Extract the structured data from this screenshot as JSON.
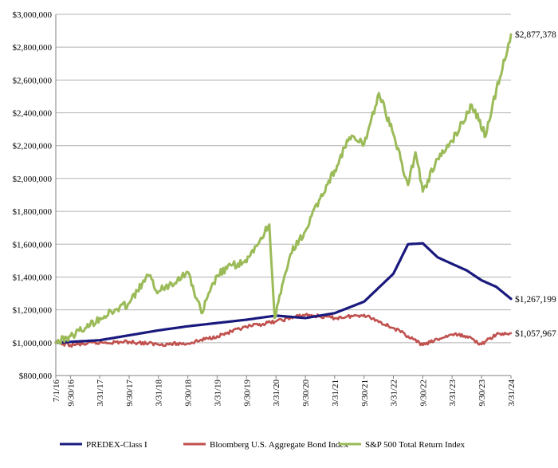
{
  "chart_data": {
    "type": "line",
    "title": "",
    "xlabel": "",
    "ylabel": "",
    "ylim": [
      800000,
      3000000
    ],
    "y_ticks": [
      800000,
      1000000,
      1200000,
      1400000,
      1600000,
      1800000,
      2000000,
      2200000,
      2400000,
      2600000,
      2800000,
      3000000
    ],
    "y_tick_labels": [
      "$800,000",
      "$1,000,000",
      "$1,200,000",
      "$1,400,000",
      "$1,600,000",
      "$1,800,000",
      "$2,000,000",
      "$2,200,000",
      "$2,400,000",
      "$2,600,000",
      "$2,800,000",
      "$3,000,000"
    ],
    "x_tick_labels": [
      "7/1/16",
      "9/30/16",
      "3/31/17",
      "9/30/17",
      "3/31/18",
      "9/30/18",
      "3/31/19",
      "9/30/19",
      "3/31/20",
      "9/30/20",
      "3/31/21",
      "9/30/21",
      "3/31/22",
      "9/30/22",
      "3/31/23",
      "9/30/23",
      "3/31/24"
    ],
    "grid": true,
    "legend_position": "bottom",
    "series": [
      {
        "name": "PREDEX-Class I",
        "color": "#1a1a7e",
        "end_label": "$1,267,199",
        "x": [
          "7/1/16",
          "9/30/16",
          "3/31/17",
          "9/30/17",
          "3/31/18",
          "9/30/18",
          "3/31/19",
          "9/30/19",
          "3/31/20",
          "9/30/20",
          "3/31/21",
          "9/30/21",
          "3/31/22",
          "6/30/22",
          "9/30/22",
          "12/31/22",
          "3/31/23",
          "6/30/23",
          "9/30/23",
          "12/31/23",
          "3/31/24"
        ],
        "values": [
          1000000,
          1005000,
          1015000,
          1045000,
          1075000,
          1100000,
          1120000,
          1140000,
          1165000,
          1150000,
          1180000,
          1250000,
          1420000,
          1600000,
          1605000,
          1520000,
          1480000,
          1440000,
          1380000,
          1340000,
          1267199
        ]
      },
      {
        "name": "Bloomberg U.S. Aggregate Bond Index",
        "color": "#c0504d",
        "end_label": "$1,057,967",
        "x": [
          "7/1/16",
          "9/30/16",
          "3/31/17",
          "9/30/17",
          "3/31/18",
          "9/30/18",
          "3/31/19",
          "9/30/19",
          "3/31/20",
          "9/30/20",
          "3/31/21",
          "9/30/21",
          "3/31/22",
          "6/30/22",
          "9/30/22",
          "12/31/22",
          "3/31/23",
          "6/30/23",
          "9/30/23",
          "12/31/23",
          "3/31/24"
        ],
        "values": [
          1000000,
          985000,
          1000000,
          1005000,
          990000,
          995000,
          1040000,
          1095000,
          1130000,
          1170000,
          1150000,
          1170000,
          1090000,
          1040000,
          985000,
          1020000,
          1050000,
          1040000,
          990000,
          1050000,
          1057967
        ]
      },
      {
        "name": "S&P 500 Total Return Index",
        "color": "#9bbb59",
        "end_label": "$2,877,378",
        "x": [
          "7/1/16",
          "9/30/16",
          "12/31/16",
          "3/31/17",
          "9/30/17",
          "1/26/18",
          "3/31/18",
          "9/30/18",
          "12/24/18",
          "3/31/19",
          "6/30/19",
          "9/30/19",
          "2/19/20",
          "3/23/20",
          "6/30/20",
          "9/30/20",
          "12/31/20",
          "3/31/21",
          "6/30/21",
          "9/30/21",
          "12/31/21",
          "3/31/22",
          "6/30/22",
          "8/15/22",
          "9/30/22",
          "12/31/22",
          "3/31/23",
          "7/31/23",
          "10/27/23",
          "12/31/23",
          "3/31/24"
        ],
        "values": [
          1000000,
          1040000,
          1090000,
          1150000,
          1240000,
          1410000,
          1310000,
          1430000,
          1180000,
          1410000,
          1470000,
          1490000,
          1720000,
          1150000,
          1540000,
          1680000,
          1880000,
          2050000,
          2250000,
          2210000,
          2520000,
          2270000,
          1960000,
          2160000,
          1920000,
          2120000,
          2230000,
          2450000,
          2260000,
          2540000,
          2877378
        ]
      }
    ]
  }
}
